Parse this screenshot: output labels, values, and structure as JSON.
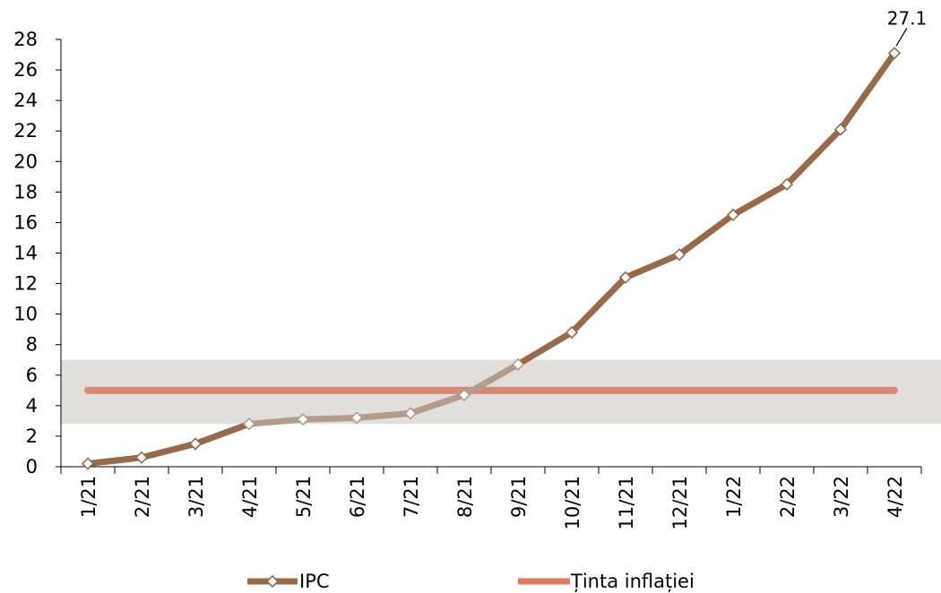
{
  "chart_data": {
    "type": "line",
    "title": "",
    "xlabel": "",
    "ylabel": "",
    "categories": [
      "1/21",
      "2/21",
      "3/21",
      "4/21",
      "5/21",
      "6/21",
      "7/21",
      "8/21",
      "9/21",
      "10/21",
      "11/21",
      "12/21",
      "1/22",
      "2/22",
      "3/22",
      "4/22"
    ],
    "ylim": [
      0,
      28
    ],
    "yticks": [
      0,
      2,
      4,
      6,
      8,
      10,
      12,
      14,
      16,
      18,
      20,
      22,
      24,
      26,
      28
    ],
    "band": {
      "from": 2.8,
      "to": 7.0,
      "color": "#e1dfdc"
    },
    "series": [
      {
        "name": "IPC",
        "values": [
          0.2,
          0.6,
          1.5,
          2.8,
          3.1,
          3.2,
          3.5,
          4.7,
          6.7,
          8.8,
          12.4,
          13.9,
          16.5,
          18.5,
          22.1,
          27.1
        ],
        "color": "#98694b",
        "band_color": "#b39c8a",
        "marker": "diamond-hollow"
      },
      {
        "name": "Ținta inflației",
        "values": [
          5,
          5,
          5,
          5,
          5,
          5,
          5,
          5,
          5,
          5,
          5,
          5,
          5,
          5,
          5,
          5
        ],
        "color": "#e07a60",
        "band_color": "#d98a77"
      }
    ],
    "annotations": [
      {
        "category": "4/22",
        "value": 27.1,
        "text": "27.1"
      }
    ],
    "legend": {
      "placement": "bottom"
    },
    "grid": false
  }
}
